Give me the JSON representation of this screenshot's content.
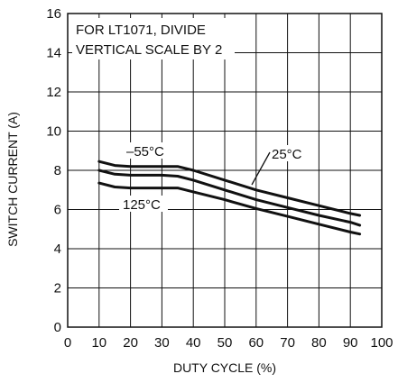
{
  "chart_data": {
    "type": "line",
    "title": "",
    "xlabel": "DUTY CYCLE (%)",
    "ylabel": "SWITCH CURRENT (A)",
    "xlim": [
      0,
      100
    ],
    "ylim": [
      0,
      16
    ],
    "xticks": [
      0,
      10,
      20,
      30,
      40,
      50,
      60,
      70,
      80,
      90,
      100
    ],
    "yticks": [
      0,
      2,
      4,
      6,
      8,
      10,
      12,
      14,
      16
    ],
    "grid": true,
    "annotation": "FOR LT1071, DIVIDE VERTICAL SCALE BY 2",
    "annotation_lines": [
      "FOR LT1071, DIVIDE",
      "VERTICAL SCALE BY 2"
    ],
    "series": [
      {
        "name": "–55°C",
        "x": [
          10,
          15,
          20,
          25,
          30,
          35,
          40,
          50,
          60,
          70,
          80,
          90,
          93
        ],
        "y": [
          8.45,
          8.25,
          8.2,
          8.2,
          8.2,
          8.2,
          8.0,
          7.5,
          7.0,
          6.6,
          6.2,
          5.8,
          5.7
        ]
      },
      {
        "name": "25°C",
        "x": [
          10,
          15,
          20,
          25,
          30,
          35,
          40,
          50,
          60,
          70,
          80,
          90,
          93
        ],
        "y": [
          8.0,
          7.8,
          7.75,
          7.75,
          7.75,
          7.7,
          7.5,
          7.0,
          6.5,
          6.1,
          5.7,
          5.35,
          5.2
        ]
      },
      {
        "name": "125°C",
        "x": [
          10,
          15,
          20,
          25,
          30,
          35,
          40,
          50,
          60,
          70,
          80,
          90,
          93
        ],
        "y": [
          7.35,
          7.15,
          7.1,
          7.1,
          7.1,
          7.1,
          6.9,
          6.5,
          6.05,
          5.65,
          5.25,
          4.85,
          4.75
        ]
      }
    ]
  }
}
